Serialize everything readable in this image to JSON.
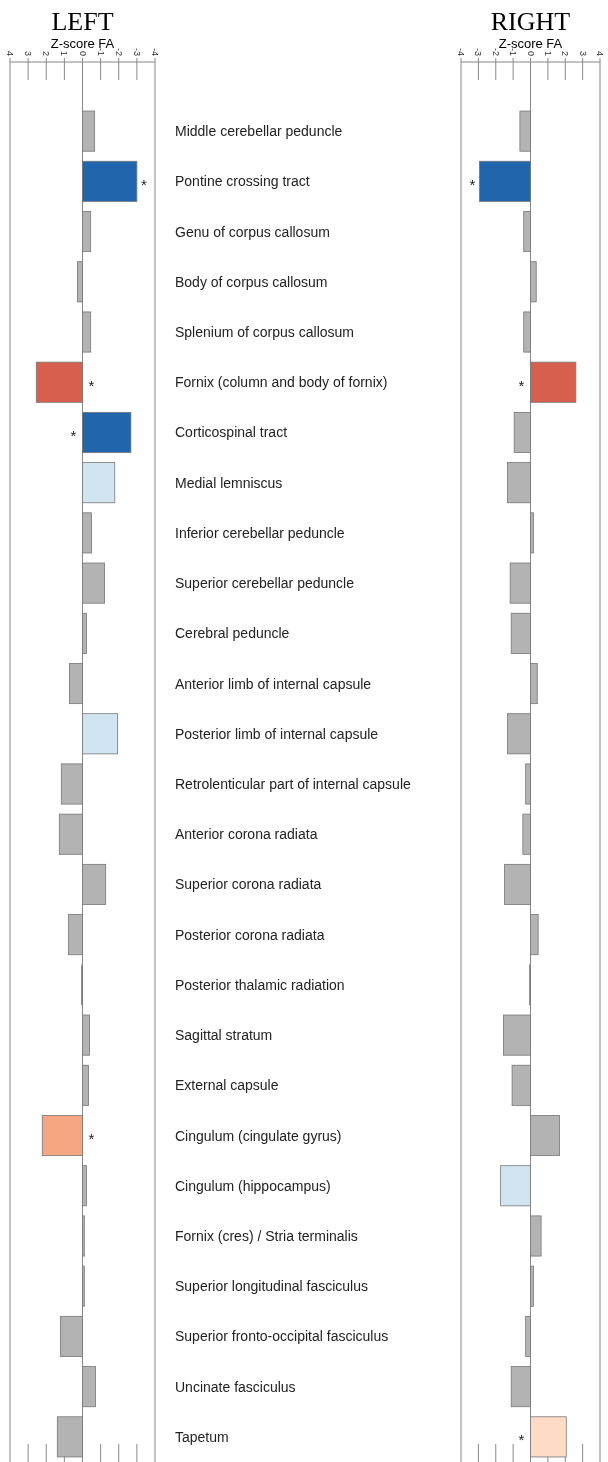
{
  "chart_data": [
    {
      "type": "bar",
      "orientation": "horizontal",
      "title": "LEFT",
      "xlabel": "Z-score FA",
      "xlim": [
        4,
        -4
      ],
      "xticks": [
        4,
        3,
        2,
        1,
        0,
        -1,
        -2,
        -3,
        -4
      ],
      "categories": [
        "Middle cerebellar peduncle",
        "Pontine crossing tract",
        "Genu of corpus callosum",
        "Body of corpus callosum",
        "Splenium of corpus callosum",
        "Fornix (column and body of fornix)",
        "Corticospinal tract",
        "Medial lemniscus",
        "Inferior cerebellar peduncle",
        "Superior cerebellar peduncle",
        "Cerebral peduncle",
        "Anterior limb of internal capsule",
        "Posterior limb of internal capsule",
        "Retrolenticular part of internal capsule",
        "Anterior corona radiata",
        "Superior corona radiata",
        "Posterior corona radiata",
        "Posterior thalamic radiation",
        "Sagittal stratum",
        "External capsule",
        "Cingulum (cingulate gyrus)",
        "Cingulum (hippocampus)",
        "Fornix (cres) / Stria terminalis",
        "Superior longitudinal fasciculus",
        "Superior fronto-occipital fasciculus",
        "Uncinate fasciculus",
        "Tapetum"
      ],
      "values": [
        -0.67,
        -3.0,
        -0.45,
        0.28,
        -0.45,
        2.55,
        -2.67,
        -1.78,
        -0.5,
        -1.22,
        -0.22,
        0.72,
        -1.94,
        1.17,
        1.28,
        -1.28,
        0.78,
        0.05,
        -0.39,
        -0.33,
        2.22,
        -0.22,
        -0.1,
        -0.1,
        1.22,
        -0.72,
        1.39
      ],
      "colors": [
        "#b3b3b3",
        "#2166ac",
        "#b3b3b3",
        "#b3b3b3",
        "#b3b3b3",
        "#d6604d",
        "#2166ac",
        "#d1e5f0",
        "#b3b3b3",
        "#b3b3b3",
        "#b3b3b3",
        "#b3b3b3",
        "#d1e5f0",
        "#b3b3b3",
        "#b3b3b3",
        "#b3b3b3",
        "#b3b3b3",
        "#b3b3b3",
        "#b3b3b3",
        "#b3b3b3",
        "#f4a582",
        "#b3b3b3",
        "#b3b3b3",
        "#b3b3b3",
        "#b3b3b3",
        "#b3b3b3",
        "#b3b3b3"
      ],
      "annotations": [
        {
          "text": "*",
          "x": -3.0,
          "y": "Pontine crossing tract"
        },
        {
          "text": "*",
          "x": 0,
          "y": "Fornix (column and body of fornix)"
        },
        {
          "text": "*",
          "x": 0,
          "y": "Corticospinal tract"
        },
        {
          "text": "*",
          "x": 0,
          "y": "Cingulum (cingulate gyrus)"
        }
      ]
    },
    {
      "type": "bar",
      "orientation": "horizontal",
      "title": "RIGHT",
      "xlabel": "Z-score FA",
      "xlim": [
        -4,
        4
      ],
      "xticks": [
        -4,
        -3,
        -2,
        -1,
        0,
        1,
        2,
        3,
        4
      ],
      "tick_labels": "x",
      "categories": [
        "Middle cerebellar peduncle",
        "Pontine crossing tract",
        "Genu of corpus callosum",
        "Body of corpus callosum",
        "Splenium of corpus callosum",
        "Fornix (column and body of fornix)",
        "Corticospinal tract",
        "Medial lemniscus",
        "Inferior cerebellar peduncle",
        "Superior cerebellar peduncle",
        "Cerebral peduncle",
        "Anterior limb of internal capsule",
        "Posterior limb of internal capsule",
        "Retrolenticular part of internal capsule",
        "Anterior corona radiata",
        "Superior corona radiata",
        "Posterior corona radiata",
        "Posterior thalamic radiation",
        "Sagittal stratum",
        "External capsule",
        "Cingulum (cingulate gyrus)",
        "Cingulum (hippocampus)",
        "Fornix (cres) / Stria terminalis",
        "Superior longitudinal fasciculus",
        "Superior fronto-occipital fasciculus",
        "Uncinate fasciculus",
        "Tapetum"
      ],
      "values": [
        -0.61,
        -2.94,
        -0.39,
        0.33,
        -0.39,
        2.61,
        -0.94,
        -1.33,
        0.17,
        -1.17,
        -1.11,
        0.39,
        -1.33,
        -0.28,
        -0.44,
        -1.5,
        0.44,
        -0.05,
        -1.56,
        -1.06,
        1.67,
        -1.72,
        0.61,
        0.17,
        -0.28,
        -1.11,
        2.06
      ],
      "colors": [
        "#b3b3b3",
        "#2166ac",
        "#b3b3b3",
        "#b3b3b3",
        "#b3b3b3",
        "#d6604d",
        "#b3b3b3",
        "#b3b3b3",
        "#b3b3b3",
        "#b3b3b3",
        "#b3b3b3",
        "#b3b3b3",
        "#b3b3b3",
        "#b3b3b3",
        "#b3b3b3",
        "#b3b3b3",
        "#b3b3b3",
        "#b3b3b3",
        "#b3b3b3",
        "#b3b3b3",
        "#b3b3b3",
        "#d1e5f0",
        "#b3b3b3",
        "#b3b3b3",
        "#b3b3b3",
        "#b3b3b3",
        "#fddbc7"
      ],
      "annotations": [
        {
          "text": "*",
          "x": -2.94,
          "y": "Pontine crossing tract"
        },
        {
          "text": "*",
          "x": 0,
          "y": "Fornix (column and body of fornix)"
        },
        {
          "text": "*",
          "x": 0,
          "y": "Tapetum"
        }
      ]
    }
  ]
}
